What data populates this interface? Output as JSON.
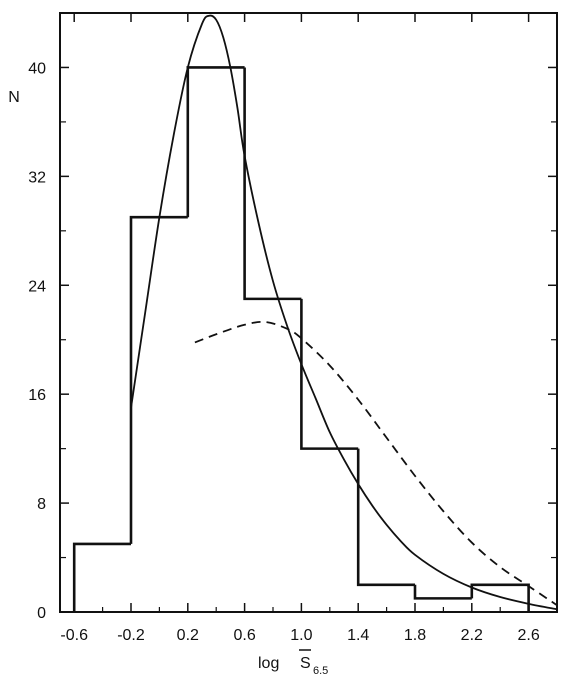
{
  "chart_data": {
    "type": "histogram",
    "xlabel": {
      "main": "log ",
      "symbol": "S",
      "subscript": "6.5"
    },
    "ylabel": "N",
    "xlim": [
      -0.7,
      2.8
    ],
    "ylim": [
      0,
      44
    ],
    "x_ticks": [
      {
        "value": -0.6,
        "label": "-0.6"
      },
      {
        "value": -0.2,
        "label": "-0.2"
      },
      {
        "value": 0.2,
        "label": "0.2"
      },
      {
        "value": 0.6,
        "label": "0.6"
      },
      {
        "value": 1.0,
        "label": "1.0"
      },
      {
        "value": 1.4,
        "label": "1.4"
      },
      {
        "value": 1.8,
        "label": "1.8"
      },
      {
        "value": 2.2,
        "label": "2.2"
      },
      {
        "value": 2.6,
        "label": "2.6"
      }
    ],
    "y_ticks": [
      {
        "value": 0,
        "label": "0"
      },
      {
        "value": 8,
        "label": "8"
      },
      {
        "value": 16,
        "label": "16"
      },
      {
        "value": 24,
        "label": "24"
      },
      {
        "value": 32,
        "label": "32"
      },
      {
        "value": 40,
        "label": "40"
      }
    ],
    "histogram": {
      "bin_edges": [
        -0.6,
        -0.2,
        0.2,
        0.6,
        1.0,
        1.4,
        1.8,
        2.2,
        2.6
      ],
      "counts": [
        5,
        29,
        40,
        23,
        12,
        2,
        1,
        2
      ]
    },
    "series": [
      {
        "style": "solid",
        "x": [
          -0.2,
          -0.1,
          0.0,
          0.1,
          0.2,
          0.3,
          0.35,
          0.4,
          0.45,
          0.5,
          0.55,
          0.6,
          0.7,
          0.8,
          0.9,
          1.0,
          1.1,
          1.2,
          1.3,
          1.4,
          1.5,
          1.6,
          1.7,
          1.8,
          2.0,
          2.2,
          2.4,
          2.6,
          2.8
        ],
        "y": [
          15,
          22,
          29,
          35,
          40,
          43.2,
          43.8,
          43.5,
          42.2,
          40.0,
          37.0,
          33.5,
          28.5,
          24.3,
          21.0,
          18.2,
          15.7,
          13.2,
          11.2,
          9.4,
          7.8,
          6.4,
          5.2,
          4.2,
          2.8,
          1.8,
          1.1,
          0.6,
          0.2
        ]
      },
      {
        "style": "dashed",
        "x": [
          0.25,
          0.4,
          0.6,
          0.75,
          0.9,
          1.0,
          1.2,
          1.4,
          1.6,
          1.8,
          2.0,
          2.2,
          2.4,
          2.6,
          2.8
        ],
        "y": [
          19.8,
          20.4,
          21.1,
          21.3,
          20.8,
          20.1,
          18.1,
          15.6,
          12.8,
          10.0,
          7.4,
          5.1,
          3.3,
          1.9,
          0.5
        ]
      }
    ],
    "grid": false,
    "legend": "none"
  }
}
